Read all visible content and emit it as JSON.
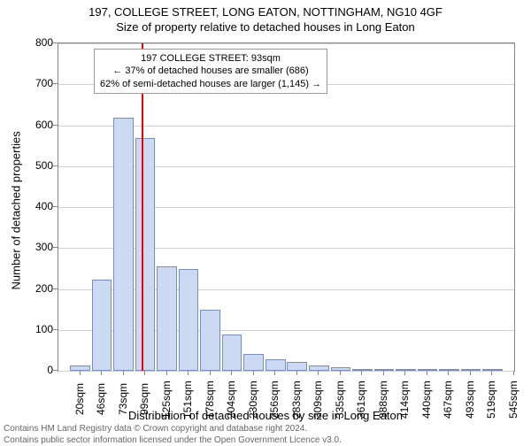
{
  "title_line1": "197, COLLEGE STREET, LONG EATON, NOTTINGHAM, NG10 4GF",
  "title_line2": "Size of property relative to detached houses in Long Eaton",
  "chart": {
    "type": "histogram",
    "ylabel": "Number of detached properties",
    "xlabel": "Distribution of detached houses by size in Long Eaton",
    "ylim": [
      0,
      800
    ],
    "ytick_step": 100,
    "y_ticks": [
      0,
      100,
      200,
      300,
      400,
      500,
      600,
      700,
      800
    ],
    "x_ticks": [
      "20sqm",
      "46sqm",
      "73sqm",
      "99sqm",
      "125sqm",
      "151sqm",
      "178sqm",
      "204sqm",
      "230sqm",
      "256sqm",
      "283sqm",
      "309sqm",
      "335sqm",
      "361sqm",
      "388sqm",
      "414sqm",
      "440sqm",
      "467sqm",
      "493sqm",
      "519sqm",
      "545sqm"
    ],
    "bar_fill": "#ccd9f2",
    "bar_border": "#7a8db8",
    "grid_color": "#d0d0d0",
    "axis_color": "#888888",
    "background_color": "#ffffff",
    "reference_line_color": "#ee0000",
    "reference_line_x_index": 2.85,
    "values": [
      12,
      222,
      618,
      568,
      255,
      248,
      150,
      88,
      42,
      28,
      22,
      12,
      9,
      3,
      0,
      0,
      2,
      0,
      0,
      0
    ],
    "bar_width_ratio": 0.92
  },
  "annotation": {
    "line1": "197 COLLEGE STREET: 93sqm",
    "line2": "← 37% of detached houses are smaller (686)",
    "line3": "62% of semi-detached houses are larger (1,145) →",
    "border_color": "#999999",
    "background": "#ffffff",
    "fontsize": 11
  },
  "footer": {
    "line1": "Contains HM Land Registry data © Crown copyright and database right 2024.",
    "line2": "Contains public sector information licensed under the Open Government Licence v3.0."
  }
}
